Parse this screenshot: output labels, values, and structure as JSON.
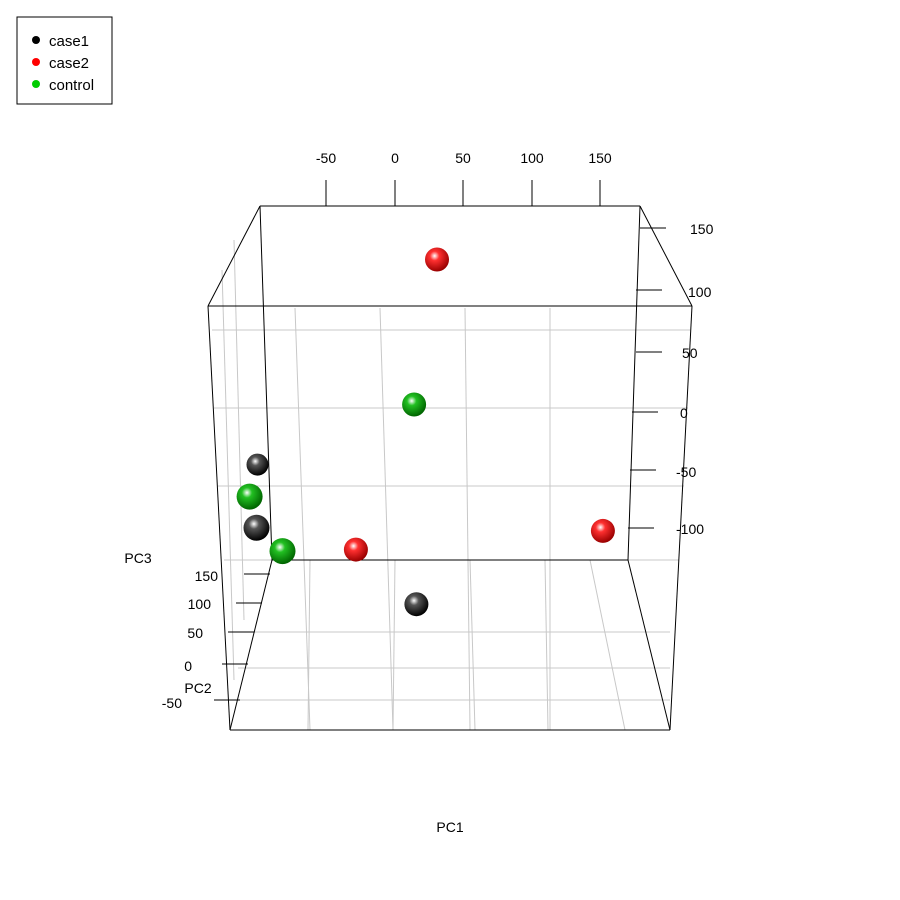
{
  "chart_data": {
    "type": "scatter",
    "projection": "3d",
    "title": "",
    "xlabel": "PC1",
    "ylabel": "PC2",
    "zlabel": "PC3",
    "axes": {
      "x": {
        "ticks": [
          "-50",
          "0",
          "50",
          "100",
          "150"
        ]
      },
      "y": {
        "ticks": [
          "-50",
          "0",
          "50",
          "100",
          "150"
        ]
      },
      "z": {
        "ticks": [
          "150",
          "100",
          "50",
          "0",
          "-50",
          "-100"
        ]
      }
    },
    "grid": true,
    "legend": {
      "placement": "top-left",
      "entries": [
        {
          "label": "case1",
          "color": "#000000"
        },
        {
          "label": "case2",
          "color": "#ff0000"
        },
        {
          "label": "control",
          "color": "#00cd00"
        }
      ]
    },
    "series": [
      {
        "name": "case1",
        "color": "#000000",
        "points": [
          {
            "x": -95,
            "y": 60,
            "z": -45
          },
          {
            "x": -95,
            "y": 40,
            "z": -100
          },
          {
            "x": 40,
            "y": -30,
            "z": -160
          }
        ]
      },
      {
        "name": "case2",
        "color": "#ff0000",
        "points": [
          {
            "x": 30,
            "y": 150,
            "z": 130
          },
          {
            "x": 180,
            "y": 20,
            "z": -100
          },
          {
            "x": -10,
            "y": -30,
            "z": -110
          }
        ]
      },
      {
        "name": "control",
        "color": "#00cd00",
        "points": [
          {
            "x": 25,
            "y": 60,
            "z": 10
          },
          {
            "x": -100,
            "y": 30,
            "z": -70
          },
          {
            "x": -70,
            "y": -40,
            "z": -110
          }
        ]
      }
    ]
  }
}
